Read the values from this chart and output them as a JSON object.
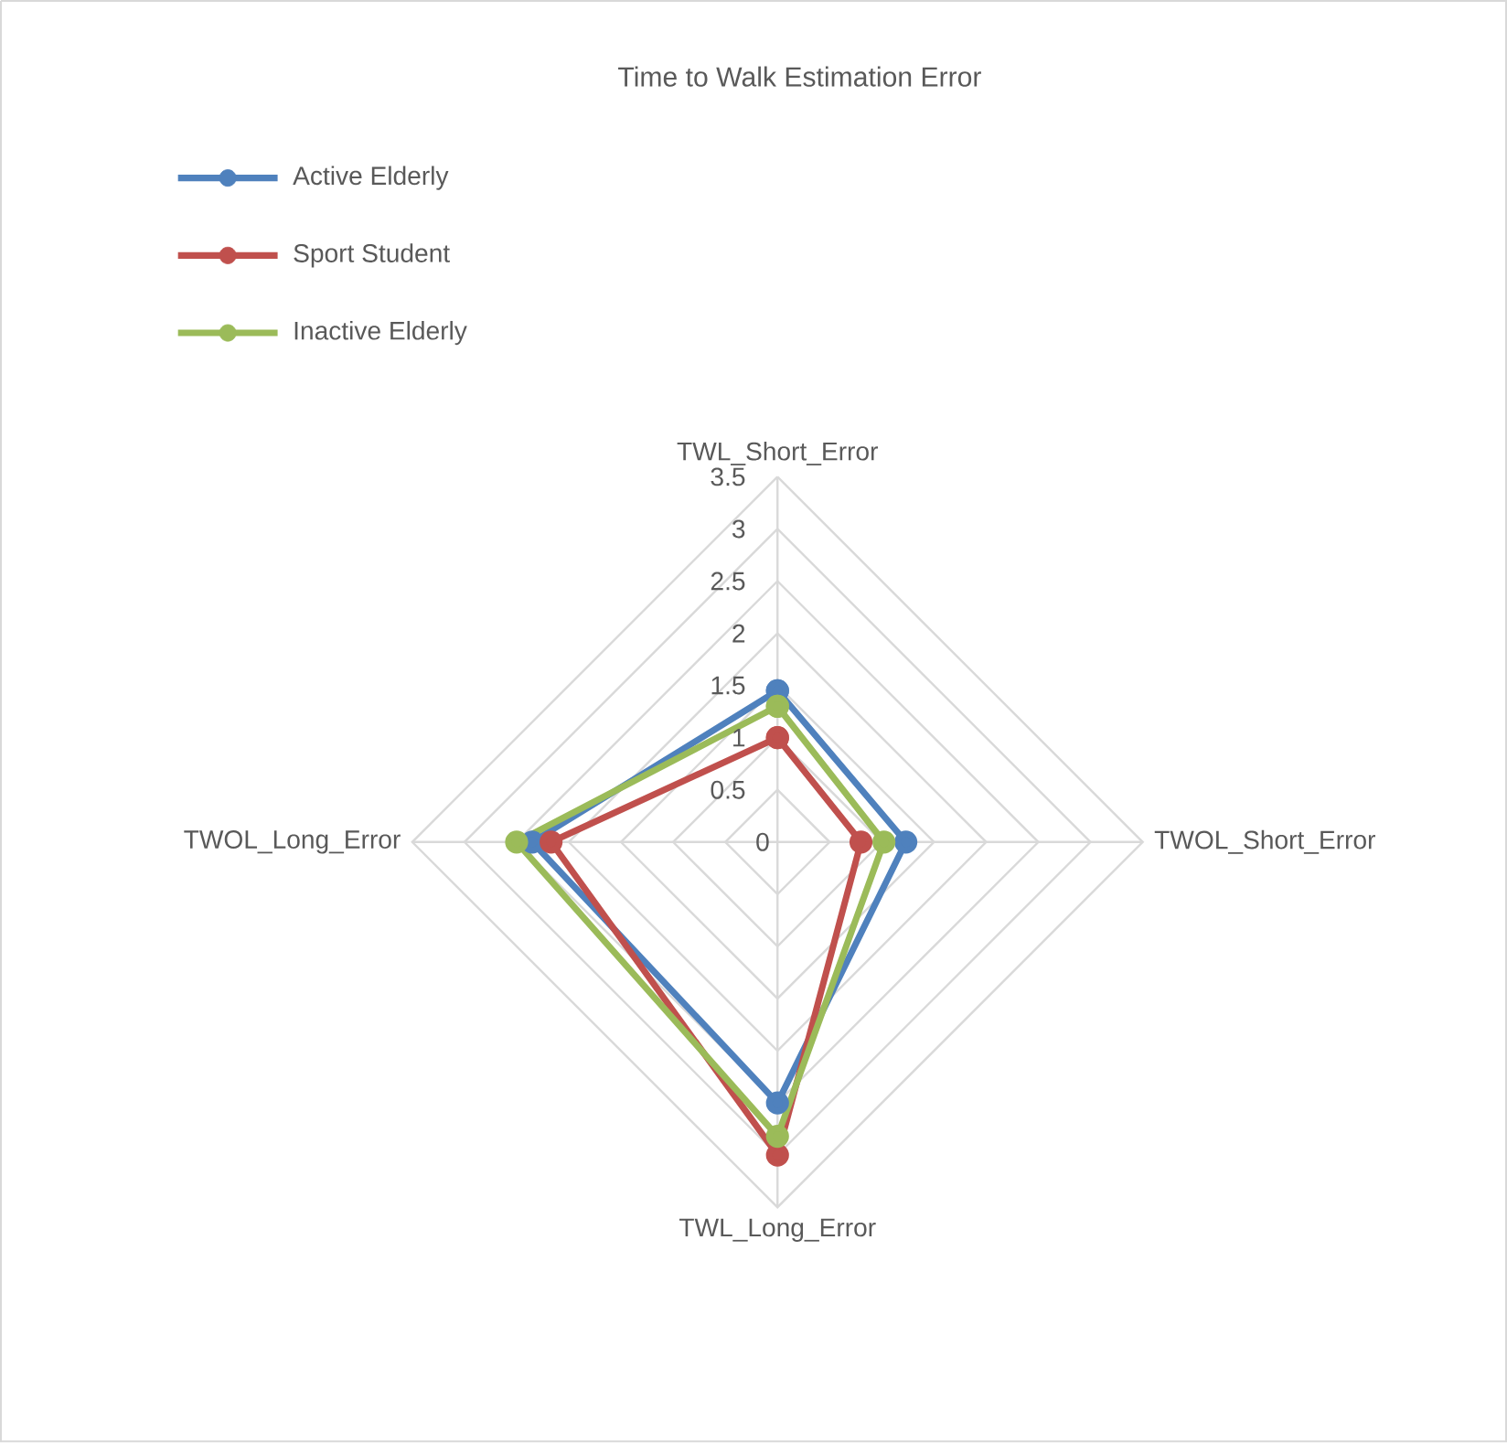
{
  "chart_data": {
    "type": "radar",
    "title": "Time to Walk Estimation Error",
    "categories": [
      "TWL_Short_Error",
      "TWOL_Short_Error",
      "TWL_Long_Error",
      "TWOL_Long_Error"
    ],
    "series": [
      {
        "name": "Active Elderly",
        "color": "#4f81bd",
        "values": [
          1.45,
          1.23,
          2.5,
          2.35
        ]
      },
      {
        "name": "Sport Student",
        "color": "#c0504d",
        "values": [
          1.0,
          0.8,
          3.0,
          2.17
        ]
      },
      {
        "name": "Inactive Elderly",
        "color": "#9bbb59",
        "values": [
          1.3,
          1.02,
          2.82,
          2.5
        ]
      }
    ],
    "ylim": [
      0,
      3.5
    ],
    "yticks": [
      0,
      0.5,
      1,
      1.5,
      2,
      2.5,
      3,
      3.5
    ],
    "grid": true,
    "legend": "top left",
    "marker": "circle"
  }
}
